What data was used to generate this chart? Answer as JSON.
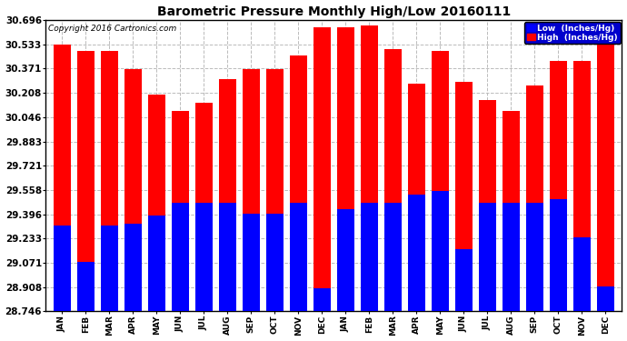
{
  "title": "Barometric Pressure Monthly High/Low 20160111",
  "copyright": "Copyright 2016 Cartronics.com",
  "background_color": "#ffffff",
  "plot_bg_color": "#ffffff",
  "grid_color": "#bbbbbb",
  "months": [
    "JAN",
    "FEB",
    "MAR",
    "APR",
    "MAY",
    "JUN",
    "JUL",
    "AUG",
    "SEP",
    "OCT",
    "NOV",
    "DEC",
    "JAN",
    "FEB",
    "MAR",
    "APR",
    "MAY",
    "JUN",
    "JUL",
    "AUG",
    "SEP",
    "OCT",
    "NOV",
    "DEC"
  ],
  "high_values": [
    30.53,
    30.49,
    30.49,
    30.37,
    30.2,
    30.09,
    30.14,
    30.3,
    30.37,
    30.37,
    30.46,
    30.65,
    30.65,
    30.66,
    30.5,
    30.27,
    30.49,
    30.28,
    30.16,
    30.09,
    30.26,
    30.42,
    30.42,
    30.54
  ],
  "low_values": [
    29.32,
    29.08,
    29.32,
    29.33,
    29.39,
    29.47,
    29.47,
    29.47,
    29.4,
    29.4,
    29.47,
    28.9,
    29.43,
    29.47,
    29.47,
    29.53,
    29.55,
    29.16,
    29.47,
    29.47,
    29.47,
    29.5,
    29.24,
    28.91
  ],
  "high_color": "#ff0000",
  "low_color": "#0000ff",
  "legend_high_label": "High  (Inches/Hg)",
  "legend_low_label": "Low  (Inches/Hg)",
  "y_ticks": [
    28.746,
    28.908,
    29.071,
    29.233,
    29.396,
    29.558,
    29.721,
    29.883,
    30.046,
    30.208,
    30.371,
    30.533,
    30.696
  ],
  "ymin": 28.746,
  "ymax": 30.696,
  "bar_width": 0.72
}
